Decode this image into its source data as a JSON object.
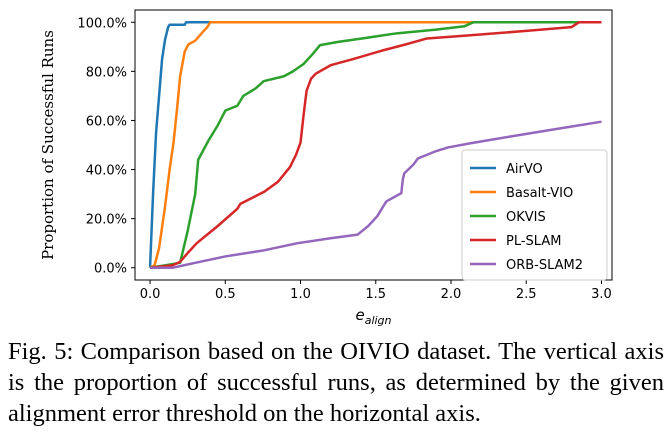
{
  "chart_data": {
    "type": "line",
    "xlabel": "e_align",
    "ylabel": "Proportion of Successful Runs",
    "xlim": [
      -0.1,
      3.07
    ],
    "ylim": [
      -5,
      105
    ],
    "xticks": [
      "0.0",
      "0.5",
      "1.0",
      "1.5",
      "2.0",
      "2.5",
      "3.0"
    ],
    "yticks": [
      "0.0%",
      "20.0%",
      "40.0%",
      "60.0%",
      "80.0%",
      "100.0%"
    ],
    "grid": false,
    "legend_position": "lower-right",
    "series": [
      {
        "name": "AirVO",
        "color": "#1f77b4",
        "points": [
          [
            0,
            0
          ],
          [
            0.02,
            30
          ],
          [
            0.04,
            55
          ],
          [
            0.06,
            70
          ],
          [
            0.08,
            85
          ],
          [
            0.1,
            93
          ],
          [
            0.12,
            98
          ],
          [
            0.13,
            99
          ],
          [
            0.23,
            99
          ],
          [
            0.24,
            100
          ],
          [
            3,
            100
          ]
        ]
      },
      {
        "name": "Basalt-VIO",
        "color": "#ff7f0e",
        "points": [
          [
            0,
            0
          ],
          [
            0.03,
            1
          ],
          [
            0.06,
            8
          ],
          [
            0.1,
            25
          ],
          [
            0.13,
            40
          ],
          [
            0.156,
            51
          ],
          [
            0.18,
            65
          ],
          [
            0.2,
            78
          ],
          [
            0.23,
            88
          ],
          [
            0.255,
            91
          ],
          [
            0.3,
            92.5
          ],
          [
            0.35,
            96
          ],
          [
            0.38,
            98
          ],
          [
            0.4,
            100
          ],
          [
            3,
            100
          ]
        ]
      },
      {
        "name": "OKVIS",
        "color": "#2ca02c",
        "points": [
          [
            0,
            0
          ],
          [
            0.2,
            2
          ],
          [
            0.25,
            15
          ],
          [
            0.3,
            30
          ],
          [
            0.32,
            44
          ],
          [
            0.39,
            52
          ],
          [
            0.45,
            58
          ],
          [
            0.5,
            64
          ],
          [
            0.58,
            66
          ],
          [
            0.62,
            70
          ],
          [
            0.7,
            73
          ],
          [
            0.755,
            76
          ],
          [
            0.89,
            78
          ],
          [
            0.95,
            80
          ],
          [
            1.02,
            83
          ],
          [
            1.08,
            87
          ],
          [
            1.13,
            90.7
          ],
          [
            1.25,
            92
          ],
          [
            1.42,
            93.5
          ],
          [
            1.64,
            95.5
          ],
          [
            1.9,
            97
          ],
          [
            2.09,
            98.4
          ],
          [
            2.15,
            100
          ],
          [
            3,
            100
          ]
        ]
      },
      {
        "name": "PL-SLAM",
        "color": "#d62728",
        "points": [
          [
            0,
            0
          ],
          [
            0.15,
            1
          ],
          [
            0.2,
            2.4
          ],
          [
            0.25,
            6
          ],
          [
            0.31,
            10
          ],
          [
            0.45,
            17
          ],
          [
            0.58,
            24
          ],
          [
            0.6,
            26
          ],
          [
            0.76,
            31
          ],
          [
            0.85,
            35
          ],
          [
            0.93,
            41
          ],
          [
            0.97,
            46
          ],
          [
            1.0,
            51
          ],
          [
            1.02,
            62
          ],
          [
            1.04,
            72
          ],
          [
            1.07,
            77
          ],
          [
            1.1,
            79
          ],
          [
            1.2,
            82.5
          ],
          [
            1.35,
            85
          ],
          [
            1.55,
            88.6
          ],
          [
            1.7,
            91
          ],
          [
            1.84,
            93.4
          ],
          [
            2.13,
            94.7
          ],
          [
            2.5,
            96.5
          ],
          [
            2.8,
            98
          ],
          [
            2.85,
            100
          ],
          [
            3,
            100
          ]
        ]
      },
      {
        "name": "ORB-SLAM2",
        "color": "#9467bd",
        "points": [
          [
            0,
            0
          ],
          [
            0.15,
            0
          ],
          [
            0.3,
            2
          ],
          [
            0.5,
            4.6
          ],
          [
            0.75,
            7
          ],
          [
            0.98,
            10
          ],
          [
            1.2,
            12
          ],
          [
            1.38,
            13.5
          ],
          [
            1.45,
            17
          ],
          [
            1.51,
            21
          ],
          [
            1.57,
            27
          ],
          [
            1.67,
            30.4
          ],
          [
            1.68,
            36
          ],
          [
            1.69,
            38.5
          ],
          [
            1.75,
            42
          ],
          [
            1.78,
            44.5
          ],
          [
            1.9,
            47.5
          ],
          [
            1.98,
            49
          ],
          [
            2.13,
            50.7
          ],
          [
            2.4,
            53.5
          ],
          [
            2.7,
            56.5
          ],
          [
            3,
            59.5
          ]
        ]
      }
    ]
  },
  "caption": "Fig. 5: Comparison based on the OIVIO dataset. The vertical axis is the proportion of successful runs, as determined by the given alignment error threshold on the horizontal axis."
}
